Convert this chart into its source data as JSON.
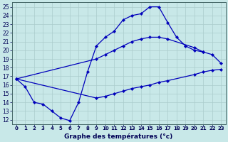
{
  "title": "Graphe des températures (°c)",
  "bg_color": "#c8e8e8",
  "line_color": "#0000bb",
  "grid_color": "#aacccc",
  "text_color": "#000055",
  "xlim": [
    -0.5,
    23.5
  ],
  "ylim": [
    11.5,
    25.5
  ],
  "xticks": [
    0,
    1,
    2,
    3,
    4,
    5,
    6,
    7,
    8,
    9,
    10,
    11,
    12,
    13,
    14,
    15,
    16,
    17,
    18,
    19,
    20,
    21,
    22,
    23
  ],
  "yticks": [
    12,
    13,
    14,
    15,
    16,
    17,
    18,
    19,
    20,
    21,
    22,
    23,
    24,
    25
  ],
  "series": [
    {
      "x": [
        0,
        1,
        2,
        3,
        4,
        5,
        6,
        7,
        8,
        9,
        10,
        11,
        12,
        13,
        14,
        15,
        16,
        17,
        18,
        19,
        20,
        21
      ],
      "y": [
        16.7,
        15.8,
        14.0,
        13.8,
        13.0,
        12.2,
        11.9,
        14.0,
        17.5,
        20.5,
        21.5,
        22.2,
        23.5,
        24.0,
        24.2,
        25.0,
        25.0,
        23.2,
        21.5,
        20.5,
        20.0,
        19.8
      ]
    },
    {
      "x": [
        0,
        9,
        10,
        11,
        12,
        13,
        14,
        15,
        16,
        17,
        20,
        21,
        22,
        23
      ],
      "y": [
        16.7,
        19.0,
        19.5,
        20.0,
        20.5,
        21.0,
        21.3,
        21.5,
        21.5,
        21.3,
        20.3,
        19.8,
        19.5,
        18.5
      ]
    },
    {
      "x": [
        0,
        9,
        10,
        11,
        12,
        13,
        14,
        15,
        16,
        17,
        20,
        21,
        22,
        23
      ],
      "y": [
        16.7,
        14.5,
        14.7,
        15.0,
        15.3,
        15.6,
        15.8,
        16.0,
        16.3,
        16.5,
        17.2,
        17.5,
        17.7,
        17.8
      ]
    }
  ]
}
